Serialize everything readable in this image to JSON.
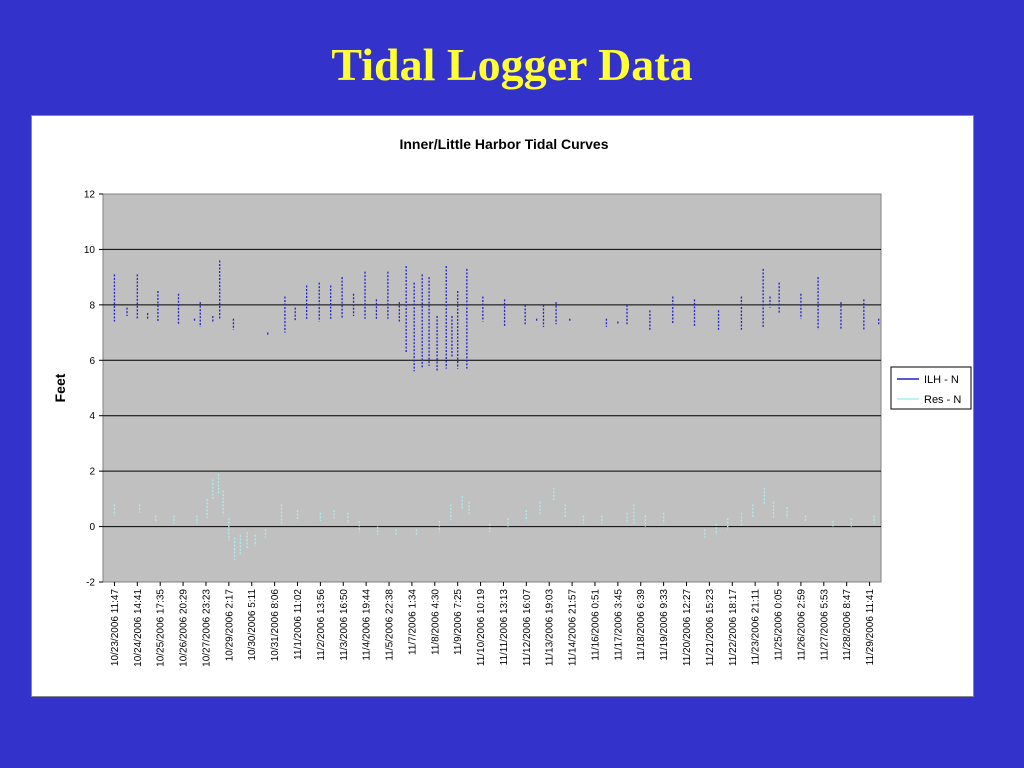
{
  "slide": {
    "title": "Tidal Logger Data"
  },
  "chart_data": {
    "type": "scatter",
    "title": "Inner/Little Harbor Tidal Curves",
    "xlabel": "",
    "ylabel": "Feet",
    "ylim": [
      -2,
      12
    ],
    "yticks": [
      -2,
      0,
      2,
      4,
      6,
      8,
      10,
      12
    ],
    "grid": true,
    "legend_position": "right",
    "x_ticks": [
      "10/23/2006 11:47",
      "10/24/2006 14:41",
      "10/25/2006 17:35",
      "10/26/2006 20:29",
      "10/27/2006 23:23",
      "10/29/2006 2:17",
      "10/30/2006 5:11",
      "10/31/2006 8:06",
      "11/1/2006 11:02",
      "11/2/2006 13:56",
      "11/3/2006 16:50",
      "11/4/2006 19:44",
      "11/5/2006 22:38",
      "11/7/2006 1:34",
      "11/8/2006 4:30",
      "11/9/2006 7:25",
      "11/10/2006 10:19",
      "11/11/2006 13:13",
      "11/12/2006 16:07",
      "11/13/2006 19:03",
      "11/14/2006 21:57",
      "11/16/2006 0:51",
      "11/17/2006 3:45",
      "11/18/2006 6:39",
      "11/19/2006 9:33",
      "11/20/2006 12:27",
      "11/21/2006 15:23",
      "11/22/2006 18:17",
      "11/23/2006 21:11",
      "11/25/2006 0:05",
      "11/26/2006 2:59",
      "11/27/2006 5:53",
      "11/28/2006 8:47",
      "11/29/2006 11:41"
    ],
    "series": [
      {
        "name": "ILH - N",
        "color": "#2222cc",
        "segments": [
          [
            0.0,
            7.4,
            9.1
          ],
          [
            0.55,
            7.6,
            7.9
          ],
          [
            1.0,
            7.5,
            9.1
          ],
          [
            1.45,
            7.5,
            7.7
          ],
          [
            1.9,
            7.4,
            8.5
          ],
          [
            2.8,
            7.3,
            8.4
          ],
          [
            3.5,
            7.4,
            7.5
          ],
          [
            3.75,
            7.2,
            8.1
          ],
          [
            4.3,
            7.4,
            7.6
          ],
          [
            4.6,
            7.5,
            9.6
          ],
          [
            5.2,
            7.1,
            7.5
          ],
          [
            6.7,
            6.9,
            7.0
          ],
          [
            7.45,
            7.0,
            8.3
          ],
          [
            7.9,
            7.4,
            7.9
          ],
          [
            8.4,
            7.5,
            8.7
          ],
          [
            8.95,
            7.4,
            8.8
          ],
          [
            9.45,
            7.5,
            8.7
          ],
          [
            9.95,
            7.5,
            9.0
          ],
          [
            10.45,
            7.6,
            8.4
          ],
          [
            10.95,
            7.5,
            9.2
          ],
          [
            11.45,
            7.5,
            8.2
          ],
          [
            11.95,
            7.5,
            9.2
          ],
          [
            12.45,
            7.4,
            8.1
          ],
          [
            12.75,
            6.3,
            9.4
          ],
          [
            13.1,
            5.6,
            8.8
          ],
          [
            13.45,
            5.7,
            9.1
          ],
          [
            13.75,
            5.8,
            9.0
          ],
          [
            14.1,
            5.6,
            7.6
          ],
          [
            14.5,
            5.7,
            9.4
          ],
          [
            14.75,
            6.1,
            7.6
          ],
          [
            15.0,
            5.7,
            8.5
          ],
          [
            15.4,
            5.7,
            9.3
          ],
          [
            16.1,
            7.4,
            8.3
          ],
          [
            17.05,
            7.2,
            8.2
          ],
          [
            17.95,
            7.3,
            8.0
          ],
          [
            18.45,
            7.4,
            7.5
          ],
          [
            18.75,
            7.2,
            8.0
          ],
          [
            19.3,
            7.3,
            8.1
          ],
          [
            19.9,
            7.4,
            7.5
          ],
          [
            21.5,
            7.2,
            7.5
          ],
          [
            22.0,
            7.3,
            7.4
          ],
          [
            22.4,
            7.3,
            8.0
          ],
          [
            23.4,
            7.1,
            7.8
          ],
          [
            24.4,
            7.3,
            8.3
          ],
          [
            25.35,
            7.2,
            8.2
          ],
          [
            26.4,
            7.1,
            7.8
          ],
          [
            27.4,
            7.1,
            8.3
          ],
          [
            28.35,
            7.2,
            9.3
          ],
          [
            28.65,
            7.9,
            8.3
          ],
          [
            29.05,
            7.7,
            8.8
          ],
          [
            30.0,
            7.5,
            8.4
          ],
          [
            30.75,
            7.1,
            9.0
          ],
          [
            31.75,
            7.1,
            8.1
          ],
          [
            32.75,
            7.1,
            8.2
          ],
          [
            33.4,
            7.3,
            7.5
          ]
        ]
      },
      {
        "name": "Res - N",
        "color": "#aaeeee",
        "segments": [
          [
            0.0,
            0.4,
            0.8
          ],
          [
            1.1,
            0.5,
            0.8
          ],
          [
            1.8,
            0.2,
            0.4
          ],
          [
            2.6,
            0.1,
            0.4
          ],
          [
            3.6,
            0.1,
            0.4
          ],
          [
            4.05,
            0.3,
            1.0
          ],
          [
            4.3,
            1.0,
            1.7
          ],
          [
            4.55,
            1.2,
            1.9
          ],
          [
            4.75,
            0.4,
            1.3
          ],
          [
            5.0,
            -0.5,
            0.3
          ],
          [
            5.25,
            -1.2,
            -0.4
          ],
          [
            5.5,
            -1.0,
            -0.3
          ],
          [
            5.8,
            -0.8,
            -0.2
          ],
          [
            6.15,
            -0.7,
            -0.3
          ],
          [
            6.6,
            -0.4,
            -0.1
          ],
          [
            7.3,
            0.1,
            0.8
          ],
          [
            8.0,
            0.2,
            0.6
          ],
          [
            9.0,
            0.2,
            0.5
          ],
          [
            9.6,
            0.3,
            0.6
          ],
          [
            10.2,
            0.1,
            0.5
          ],
          [
            10.7,
            -0.2,
            0.2
          ],
          [
            11.5,
            -0.3,
            0.0
          ],
          [
            12.3,
            -0.3,
            -0.1
          ],
          [
            13.2,
            -0.3,
            -0.1
          ],
          [
            14.2,
            -0.2,
            0.2
          ],
          [
            14.7,
            0.2,
            0.8
          ],
          [
            15.2,
            0.6,
            1.1
          ],
          [
            15.5,
            0.4,
            0.9
          ],
          [
            16.4,
            -0.2,
            0.1
          ],
          [
            17.2,
            0.0,
            0.3
          ],
          [
            18.0,
            0.2,
            0.6
          ],
          [
            18.6,
            0.4,
            0.9
          ],
          [
            19.2,
            0.9,
            1.4
          ],
          [
            19.7,
            0.3,
            0.8
          ],
          [
            20.5,
            0.1,
            0.4
          ],
          [
            21.3,
            0.1,
            0.4
          ],
          [
            22.4,
            0.1,
            0.5
          ],
          [
            22.7,
            0.1,
            0.8
          ],
          [
            23.2,
            0.0,
            0.4
          ],
          [
            24.0,
            0.1,
            0.5
          ],
          [
            25.8,
            -0.4,
            -0.1
          ],
          [
            26.3,
            -0.3,
            0.1
          ],
          [
            26.8,
            -0.1,
            0.3
          ],
          [
            27.4,
            0.0,
            0.5
          ],
          [
            27.9,
            0.3,
            0.8
          ],
          [
            28.4,
            0.8,
            1.4
          ],
          [
            28.8,
            0.3,
            0.9
          ],
          [
            29.4,
            0.3,
            0.7
          ],
          [
            30.2,
            0.2,
            0.4
          ],
          [
            31.4,
            0.0,
            0.2
          ],
          [
            32.2,
            0.0,
            0.3
          ],
          [
            33.2,
            0.1,
            0.4
          ]
        ]
      }
    ]
  }
}
